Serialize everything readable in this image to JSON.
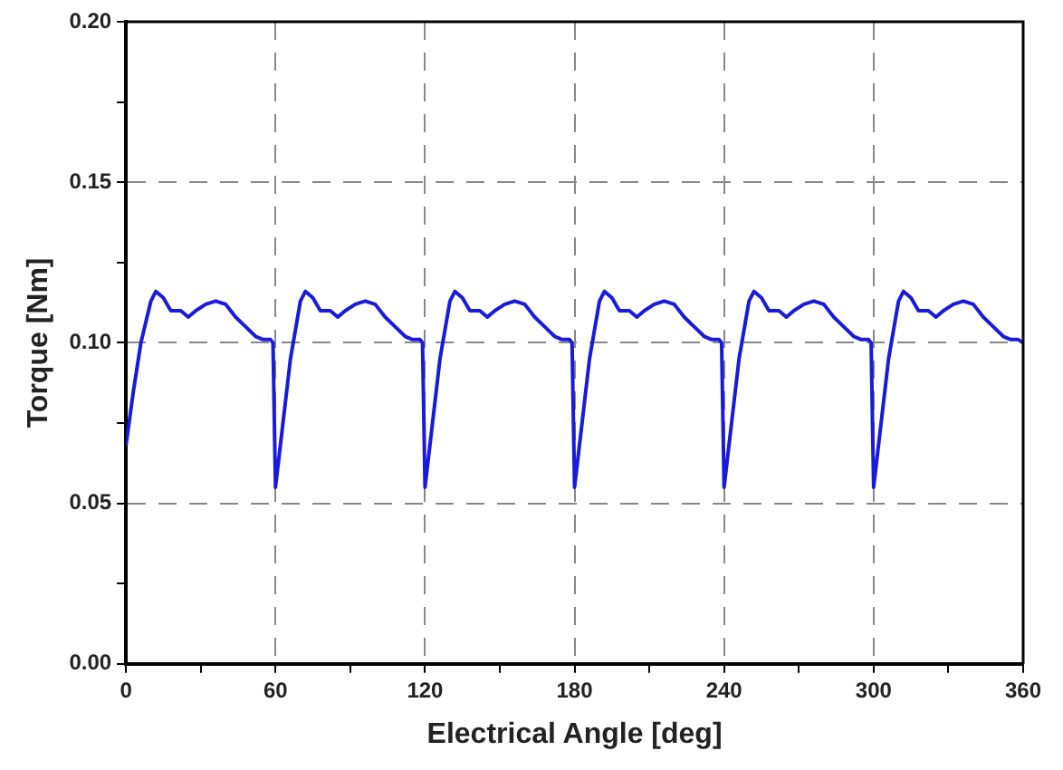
{
  "chart_data": {
    "type": "line",
    "xlabel": "Electrical Angle [deg]",
    "ylabel": "Torque [Nm]",
    "xlim": [
      0,
      360
    ],
    "ylim": [
      0,
      0.2
    ],
    "xticks": [
      0,
      {
        "value": 30,
        "label": null
      },
      60,
      {
        "value": 90,
        "label": null
      },
      120,
      {
        "value": 150,
        "label": null
      },
      180,
      {
        "value": 210,
        "label": null
      },
      240,
      {
        "value": 270,
        "label": null
      },
      300,
      {
        "value": 330,
        "label": null
      },
      360
    ],
    "yticks": [
      {
        "value": 0,
        "label": "0.00"
      },
      {
        "value": 0.025,
        "label": null
      },
      {
        "value": 0.05,
        "label": "0.05"
      },
      {
        "value": 0.075,
        "label": null
      },
      {
        "value": 0.1,
        "label": "0.10"
      },
      {
        "value": 0.125,
        "label": null
      },
      {
        "value": 0.15,
        "label": "0.15"
      },
      {
        "value": 0.175,
        "label": null
      },
      {
        "value": 0.2,
        "label": "0.20"
      }
    ],
    "grid": true,
    "legend": false,
    "marker": "none",
    "line_style": "solid",
    "series": [
      {
        "color": "#1a1adc",
        "x": [
          0,
          3,
          6,
          10,
          12,
          15,
          18,
          22,
          25,
          28,
          32,
          36,
          40,
          44,
          48,
          52,
          55,
          58,
          59,
          60,
          63,
          66,
          70,
          72,
          75,
          78,
          82,
          85,
          88,
          92,
          96,
          100,
          104,
          108,
          112,
          115,
          118,
          119,
          120,
          123,
          126,
          130,
          132,
          135,
          138,
          142,
          145,
          148,
          152,
          156,
          160,
          164,
          168,
          172,
          175,
          178,
          179,
          180,
          183,
          186,
          190,
          192,
          195,
          198,
          202,
          205,
          208,
          212,
          216,
          220,
          224,
          228,
          232,
          235,
          238,
          239,
          240,
          243,
          246,
          250,
          252,
          255,
          258,
          262,
          265,
          268,
          272,
          276,
          280,
          284,
          288,
          292,
          295,
          298,
          299,
          300,
          303,
          306,
          310,
          312,
          315,
          318,
          322,
          325,
          328,
          332,
          336,
          340,
          344,
          348,
          352,
          355,
          358,
          360
        ],
        "values": [
          0.068,
          0.085,
          0.1,
          0.113,
          0.116,
          0.114,
          0.11,
          0.11,
          0.108,
          0.11,
          0.112,
          0.113,
          0.112,
          0.108,
          0.105,
          0.102,
          0.101,
          0.101,
          0.1,
          0.055,
          0.075,
          0.095,
          0.113,
          0.116,
          0.114,
          0.11,
          0.11,
          0.108,
          0.11,
          0.112,
          0.113,
          0.112,
          0.108,
          0.105,
          0.102,
          0.101,
          0.101,
          0.1,
          0.055,
          0.075,
          0.095,
          0.113,
          0.116,
          0.114,
          0.11,
          0.11,
          0.108,
          0.11,
          0.112,
          0.113,
          0.112,
          0.108,
          0.105,
          0.102,
          0.101,
          0.101,
          0.1,
          0.055,
          0.075,
          0.095,
          0.113,
          0.116,
          0.114,
          0.11,
          0.11,
          0.108,
          0.11,
          0.112,
          0.113,
          0.112,
          0.108,
          0.105,
          0.102,
          0.101,
          0.101,
          0.1,
          0.055,
          0.075,
          0.095,
          0.113,
          0.116,
          0.114,
          0.11,
          0.11,
          0.108,
          0.11,
          0.112,
          0.113,
          0.112,
          0.108,
          0.105,
          0.102,
          0.101,
          0.101,
          0.1,
          0.055,
          0.075,
          0.095,
          0.113,
          0.116,
          0.114,
          0.11,
          0.11,
          0.108,
          0.11,
          0.112,
          0.113,
          0.112,
          0.108,
          0.105,
          0.102,
          0.101,
          0.101,
          0.1
        ]
      }
    ]
  }
}
